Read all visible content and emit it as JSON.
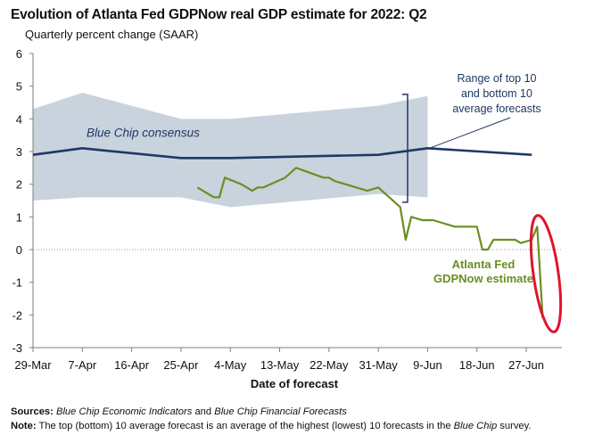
{
  "chart_data": {
    "type": "line",
    "title": "Evolution of Atlanta Fed GDPNow real GDP estimate for 2022: Q2",
    "subtitle": "Quarterly percent change (SAAR)",
    "xlabel": "Date of forecast",
    "ylabel": "",
    "ylim": [
      -3,
      6
    ],
    "yticks": [
      "6",
      "5",
      "4",
      "3",
      "2",
      "1",
      "0",
      "-1",
      "-2",
      "-3"
    ],
    "x_tick_labels": [
      "29-Mar",
      "7-Apr",
      "16-Apr",
      "25-Apr",
      "4-May",
      "13-May",
      "22-May",
      "31-May",
      "9-Jun",
      "18-Jun",
      "27-Jun"
    ],
    "x_start_day": 0,
    "x_tick_step_days": 9,
    "series": [
      {
        "name": "Blue Chip consensus",
        "label": "Blue Chip consensus",
        "color": "#1f3864",
        "days": [
          0,
          9,
          27,
          36,
          63,
          72,
          91
        ],
        "values": [
          2.9,
          3.1,
          2.8,
          2.8,
          2.9,
          3.1,
          2.9
        ]
      },
      {
        "name": "Range of top 10 and bottom 10 average forecasts",
        "type": "band",
        "color": "#c9d3dd",
        "days": [
          0,
          9,
          27,
          36,
          63,
          72
        ],
        "upper": [
          4.3,
          4.8,
          4.0,
          4.0,
          4.4,
          4.7
        ],
        "lower": [
          1.5,
          1.6,
          1.6,
          1.3,
          1.7,
          1.6
        ]
      },
      {
        "name": "Atlanta Fed GDPNow estimate",
        "label_lines": [
          "Atlanta Fed",
          "GDPNow estimate"
        ],
        "color": "#6b8e23",
        "days": [
          30,
          33,
          34,
          35,
          38,
          40,
          41,
          42,
          46,
          48,
          53,
          54,
          55,
          61,
          63,
          65,
          67,
          68,
          69,
          71,
          72,
          73,
          77,
          78,
          79,
          81,
          82,
          83,
          84,
          85,
          86,
          88,
          89,
          91,
          92,
          93
        ],
        "values": [
          1.9,
          1.6,
          1.6,
          2.2,
          2.0,
          1.8,
          1.9,
          1.9,
          2.2,
          2.5,
          2.2,
          2.2,
          2.1,
          1.8,
          1.9,
          1.6,
          1.3,
          0.3,
          1.0,
          0.9,
          0.9,
          0.9,
          0.7,
          0.7,
          0.7,
          0.7,
          0.0,
          0.0,
          0.3,
          0.3,
          0.3,
          0.3,
          0.2,
          0.3,
          0.7,
          -2.1
        ]
      }
    ],
    "annotations": {
      "range_label": [
        "Range of top 10",
        "and bottom 10",
        "average forecasts"
      ],
      "highlight": "red ellipse around latest GDPNow drop",
      "highlight_color": "#e0142b"
    }
  },
  "footnotes": {
    "sources_label": "Sources:",
    "sources_part1": "Blue Chip Economic Indicators",
    "sources_and": "and",
    "sources_part2": "Blue Chip Financial Forecasts",
    "note_label": "Note:",
    "note_text": "The top (bottom) 10 average forecast is an average of the highest (lowest) 10 forecasts in the",
    "note_italic": "Blue Chip",
    "note_end": "survey."
  }
}
